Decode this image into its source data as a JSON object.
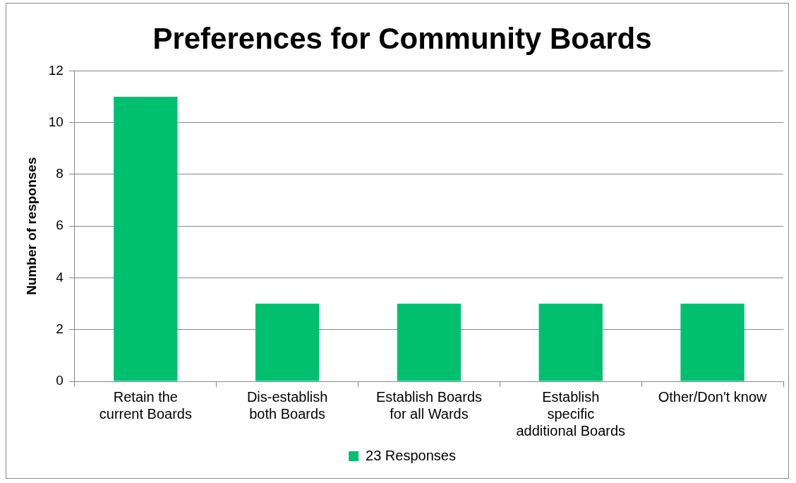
{
  "chart_data": {
    "type": "bar",
    "title": "Preferences for Community Boards",
    "ylabel": "Number of responses",
    "categories": [
      "Retain the current Boards",
      "Dis-establish both Boards",
      "Establish Boards for all Wards",
      "Establish specific additional Boards",
      "Other/Don't know"
    ],
    "series": [
      {
        "name": "23 Responses",
        "color": "#00c070",
        "values": [
          11,
          3,
          3,
          3,
          3
        ]
      }
    ],
    "ylim": [
      0,
      12
    ],
    "yticks": [
      0,
      2,
      4,
      6,
      8,
      10,
      12
    ],
    "grid": "y",
    "legend": "bottom"
  }
}
